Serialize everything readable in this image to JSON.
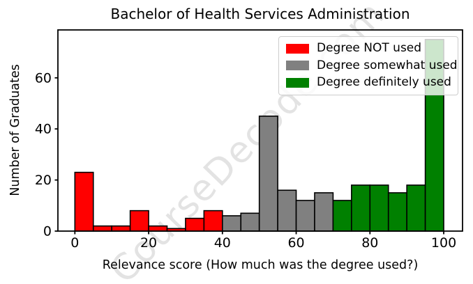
{
  "watermark": "CourseDecode.com",
  "chart_data": {
    "type": "bar",
    "title": "Bachelor of Health Services Administration",
    "xlabel": "Relevance score (How much was the degree used?)",
    "ylabel": "Number of Graduates",
    "bin_width": 5,
    "bins": {
      "start": 0,
      "end": 100,
      "width": 5
    },
    "xlim": [
      -4.6,
      105.1
    ],
    "ylim": [
      0,
      78.75
    ],
    "xticks": [
      0,
      20,
      40,
      60,
      80,
      100
    ],
    "yticks": [
      0,
      20,
      40,
      60
    ],
    "grid": false,
    "legend_position": "upper right",
    "bar_edge_color": "#000000",
    "series": [
      {
        "name": "Degree NOT used",
        "color": "#ff0000",
        "range": [
          0,
          40
        ],
        "values": [
          23,
          2,
          2,
          8,
          2,
          1,
          5,
          8
        ]
      },
      {
        "name": "Degree somewhat used",
        "color": "#808080",
        "range": [
          40,
          70
        ],
        "values": [
          6,
          7,
          45,
          16,
          12,
          15
        ]
      },
      {
        "name": "Degree definitely used",
        "color": "#008000",
        "range": [
          70,
          100
        ],
        "values": [
          12,
          18,
          18,
          15,
          18,
          75
        ]
      }
    ]
  }
}
